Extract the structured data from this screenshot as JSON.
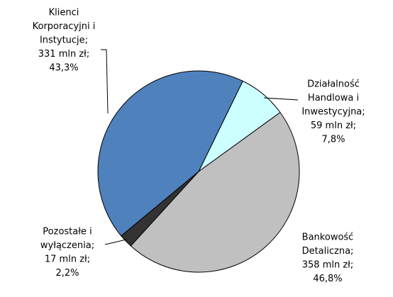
{
  "chart_data": {
    "type": "pie",
    "categories": [
      [
        "Działalność",
        "Handlowa i",
        "Inwestycyjna;"
      ],
      [
        "Bankowość",
        "Detaliczna;"
      ],
      [
        "Pozostałe i",
        "wyłączenia;"
      ],
      [
        "Klienci",
        "Korporacyjni i",
        "Instytucje;"
      ]
    ],
    "values": [
      59,
      358,
      17,
      331
    ],
    "value_labels": [
      "59 mln zł;",
      "358 mln zł;",
      "17 mln zł;",
      "331 mln zł;"
    ],
    "percent": [
      7.8,
      46.8,
      2.2,
      43.3
    ],
    "percent_labels": [
      "7,8%",
      "46,8%",
      "2,2%",
      "43,3%"
    ],
    "colors": [
      "#ccffff",
      "#c0c0c0",
      "#333333",
      "#4f81bd"
    ]
  }
}
